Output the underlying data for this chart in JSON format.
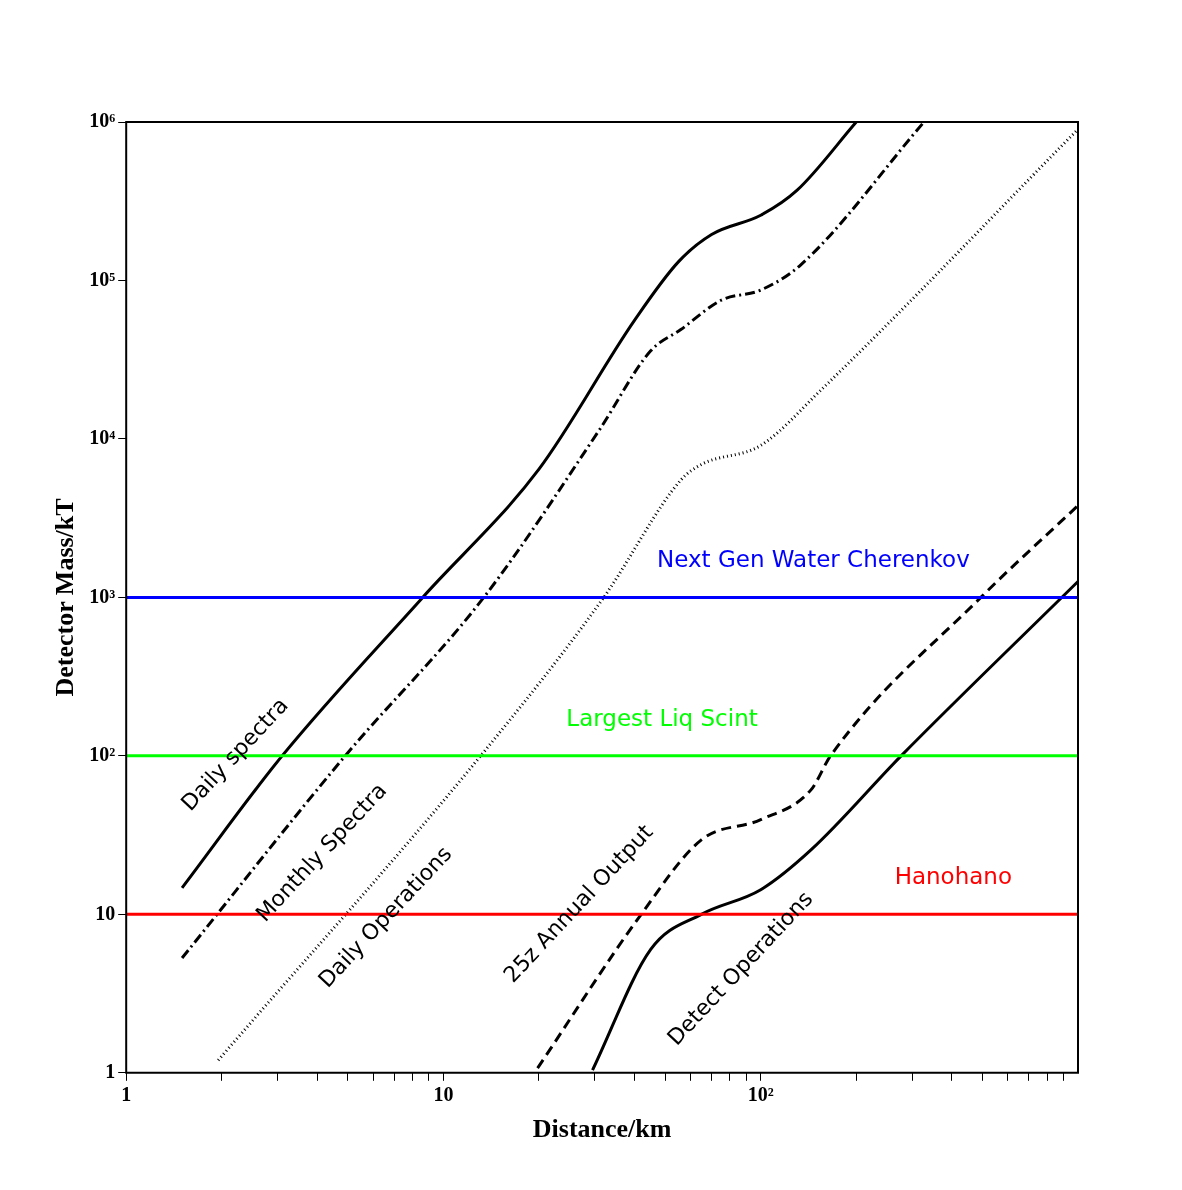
{
  "chart_data": {
    "type": "line",
    "xlabel": "Distance/km",
    "ylabel": "Detector Mass/kT",
    "log": "xy",
    "grid": false,
    "legend": false,
    "marker": "none",
    "xlim": [
      1,
      1000
    ],
    "ylim": [
      1,
      1000000
    ],
    "xticks": [
      1,
      {
        "value": 2,
        "label": null
      },
      {
        "value": 3,
        "label": null
      },
      {
        "value": 4,
        "label": null
      },
      {
        "value": 5,
        "label": null
      },
      {
        "value": 6,
        "label": null
      },
      {
        "value": 7,
        "label": null
      },
      {
        "value": 8,
        "label": null
      },
      {
        "value": 9,
        "label": null
      },
      10,
      {
        "value": 20,
        "label": null
      },
      {
        "value": 30,
        "label": null
      },
      {
        "value": 40,
        "label": null
      },
      {
        "value": 50,
        "label": null
      },
      {
        "value": 60,
        "label": null
      },
      {
        "value": 70,
        "label": null
      },
      {
        "value": 80,
        "label": null
      },
      {
        "value": 90,
        "label": null
      },
      {
        "value": 100,
        "label": "10²"
      },
      {
        "value": 200,
        "label": null
      },
      {
        "value": 300,
        "label": null
      },
      {
        "value": 400,
        "label": null
      },
      {
        "value": 500,
        "label": null
      },
      {
        "value": 600,
        "label": null
      },
      {
        "value": 700,
        "label": null
      },
      {
        "value": 800,
        "label": null
      },
      {
        "value": 900,
        "label": null
      }
    ],
    "yticks": [
      1,
      10,
      {
        "value": 100,
        "label": "10²"
      },
      {
        "value": 1000,
        "label": "10³"
      },
      {
        "value": 10000,
        "label": "10⁴"
      },
      {
        "value": 100000,
        "label": "10⁵"
      },
      {
        "value": 1000000,
        "label": "10⁶"
      }
    ],
    "series": [
      {
        "color": "#000000",
        "line_style": "solid",
        "x": [
          1.5,
          3.1,
          8.6,
          20,
          40,
          55,
          70,
          100,
          130,
          200
        ],
        "values": [
          14.7,
          100,
          1000,
          6450,
          56000,
          131000,
          195000,
          258000,
          370000,
          1000000
        ]
      },
      {
        "color": "#000000",
        "line_style": "dashdot",
        "x": [
          1.5,
          4.9,
          13.4,
          31,
          45,
          56,
          75,
          100,
          134,
          327
        ],
        "values": [
          5.3,
          100,
          1000,
          11400,
          36000,
          49000,
          75000,
          87000,
          126000,
          1000000
        ]
      },
      {
        "color": "#000000",
        "line_style": "dotted",
        "x": [
          1.95,
          13.1,
          32,
          56,
          65,
          100,
          155,
          1000
        ],
        "values": [
          1.2,
          100,
          1000,
          5500,
          6900,
          9100,
          20400,
          900000
        ]
      },
      {
        "color": "#000000",
        "line_style": "dashed",
        "x": [
          19.8,
          42,
          65,
          100,
          144,
          166,
          494,
          1000
        ],
        "values": [
          1.07,
          10,
          29.5,
          39.6,
          61,
          100,
          1000,
          3800
        ]
      },
      {
        "color": "#000000",
        "line_style": "solid",
        "x": [
          29.5,
          45,
          65,
          100,
          144,
          277,
          1000
        ],
        "values": [
          1.04,
          6,
          10,
          14.3,
          25.5,
          100,
          1260
        ]
      }
    ],
    "ref_lines": [
      {
        "axis": "y",
        "value": 1000,
        "label": "Next Gen Water Cherenkov",
        "color": "#0000ff"
      },
      {
        "axis": "y",
        "value": 100,
        "label": "Largest Liq Scint",
        "color": "#00ff00"
      },
      {
        "axis": "y",
        "value": 10,
        "label": "Hanohano",
        "color": "#ff0000"
      }
    ],
    "annotations": [
      "Daily spectra",
      "Monthly Spectra",
      "Daily Operations",
      "25z Annual Output",
      "Detect Operations"
    ]
  }
}
